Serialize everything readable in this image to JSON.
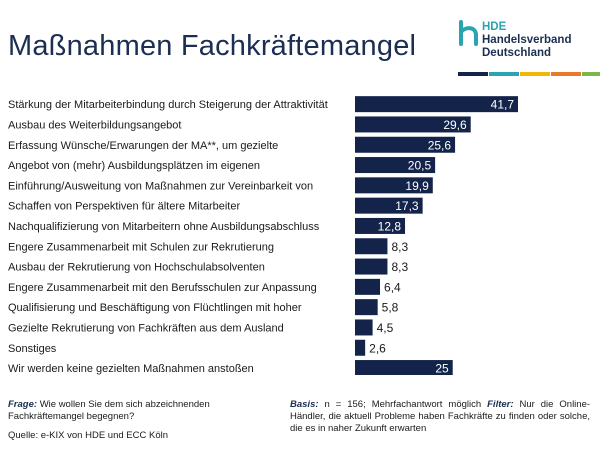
{
  "header": {
    "title": "Maßnahmen Fachkräftemangel",
    "logo_abbr": "HDE",
    "logo_line1": "Handelsverband",
    "logo_line2": "Deutschland"
  },
  "colors": {
    "bar": "#13234a",
    "title": "#1c2e52",
    "logo_stripes": [
      "#13234a",
      "#2aa4b0",
      "#f2b705",
      "#e8792b",
      "#7ab648"
    ]
  },
  "chart_data": {
    "type": "bar",
    "orientation": "horizontal",
    "categories": [
      "Stärkung der Mitarbeiterbindung durch Steigerung der Attraktivität",
      "Ausbau des Weiterbildungsangebot",
      "Erfassung Wünsche/Erwarungen der MA**, um gezielte",
      "Angebot von (mehr) Ausbildungsplätzen im eigenen",
      "Einführung/Ausweitung von Maßnahmen zur Vereinbarkeit von",
      "Schaffen von Perspektiven für ältere Mitarbeiter",
      "Nachqualifizierung von Mitarbeitern ohne Ausbildungsabschluss",
      "Engere Zusammenarbeit mit Schulen zur Rekrutierung",
      "Ausbau der Rekrutierung von Hochschulabsolventen",
      "Engere Zusammenarbeit mit den Berufsschulen zur Anpassung",
      "Qualifisierung und Beschäftigung von Flüchtlingen mit hoher",
      "Gezielte Rekrutierung von Fachkräften aus dem Ausland",
      "Sonstiges",
      "Wir werden keine gezielten Maßnahmen anstoßen"
    ],
    "values": [
      41.7,
      29.6,
      25.6,
      20.5,
      19.9,
      17.3,
      12.8,
      8.3,
      8.3,
      6.4,
      5.8,
      4.5,
      2.6,
      25
    ],
    "value_labels": [
      "41,7",
      "29,6",
      "25,6",
      "20,5",
      "19,9",
      "17,3",
      "12,8",
      "8,3",
      "8,3",
      "6,4",
      "5,8",
      "4,5",
      "2,6",
      "25"
    ],
    "xlim": [
      0,
      41.7
    ],
    "title": "Maßnahmen Fachkräftemangel",
    "xlabel": "",
    "ylabel": "",
    "grid": false,
    "legend": "none"
  },
  "footer": {
    "question_label": "Frage:",
    "question_text": "Wie wollen Sie dem sich abzeichnenden Fachkräftemangel begegnen?",
    "basis_label": "Basis:",
    "basis_text": "n = 156; Mehrfachantwort möglich",
    "filter_label": "Filter:",
    "filter_text": "Nur die Online-Händler, die aktuell Probleme haben Fachkräfte zu finden oder solche, die es in naher Zukunft erwarten",
    "source": "Quelle: e-KIX von HDE und ECC Köln"
  }
}
